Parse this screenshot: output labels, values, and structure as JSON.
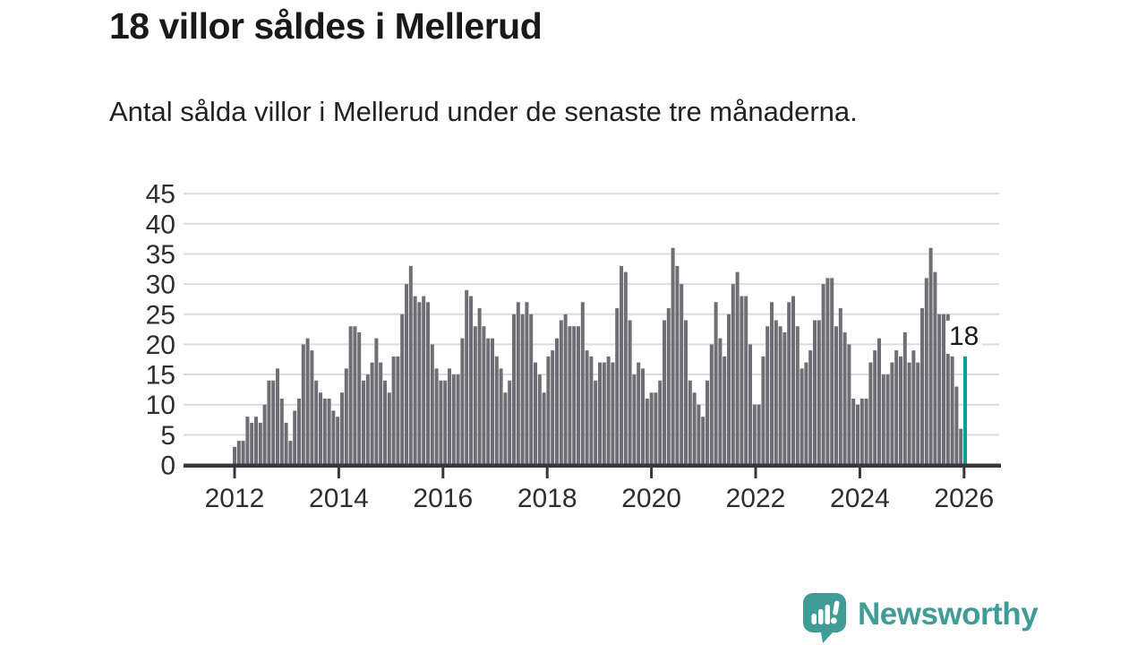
{
  "header": {
    "title": "18 villor såldes i Mellerud",
    "subtitle": "Antal sålda villor i Mellerud under de senaste tre månaderna."
  },
  "chart_data": {
    "type": "bar",
    "title": "18 villor såldes i Mellerud",
    "subtitle": "Antal sålda villor i Mellerud under de senaste tre månaderna.",
    "freq": "monthly_rolling_3m",
    "x_range_years": [
      2012,
      2026
    ],
    "x_tick_labels": [
      "2012",
      "2014",
      "2016",
      "2018",
      "2020",
      "2022",
      "2024",
      "2026"
    ],
    "y_ticks": [
      0,
      5,
      10,
      15,
      20,
      25,
      30,
      35,
      40,
      45
    ],
    "ylim": [
      0,
      45
    ],
    "grid": true,
    "values": [
      3,
      4,
      4,
      8,
      7,
      8,
      7,
      10,
      14,
      14,
      16,
      11,
      7,
      4,
      9,
      11,
      20,
      21,
      19,
      14,
      12,
      11,
      11,
      9,
      8,
      12,
      16,
      23,
      23,
      22,
      14,
      15,
      17,
      21,
      17,
      14,
      12,
      18,
      18,
      25,
      30,
      33,
      28,
      27,
      28,
      27,
      20,
      16,
      14,
      14,
      16,
      15,
      15,
      21,
      29,
      28,
      23,
      26,
      23,
      21,
      21,
      18,
      16,
      12,
      14,
      25,
      27,
      25,
      27,
      25,
      17,
      15,
      12,
      18,
      19,
      21,
      24,
      25,
      23,
      23,
      23,
      27,
      19,
      18,
      14,
      17,
      17,
      18,
      17,
      26,
      33,
      32,
      24,
      15,
      17,
      16,
      11,
      12,
      12,
      14,
      24,
      26,
      36,
      33,
      30,
      24,
      14,
      12,
      10,
      8,
      14,
      20,
      27,
      21,
      18,
      25,
      30,
      32,
      28,
      28,
      20,
      10,
      10,
      18,
      23,
      27,
      24,
      23,
      22,
      27,
      28,
      23,
      16,
      17,
      19,
      24,
      24,
      30,
      31,
      31,
      23,
      26,
      22,
      20,
      11,
      10,
      11,
      11,
      17,
      19,
      21,
      15,
      15,
      17,
      19,
      18,
      22,
      17,
      19,
      17,
      26,
      31,
      36,
      32,
      25,
      25,
      25,
      18,
      13,
      6
    ],
    "highlight": {
      "value": 18,
      "label": "18"
    },
    "colors": {
      "bar": "#6E6E74",
      "highlight": "#00A29A",
      "grid": "#DCDCDC",
      "axis": "#383838",
      "tick_text": "#2E2E2E"
    }
  },
  "footer": {
    "brand": "Newsworthy",
    "brand_color": "#3F9C96"
  }
}
